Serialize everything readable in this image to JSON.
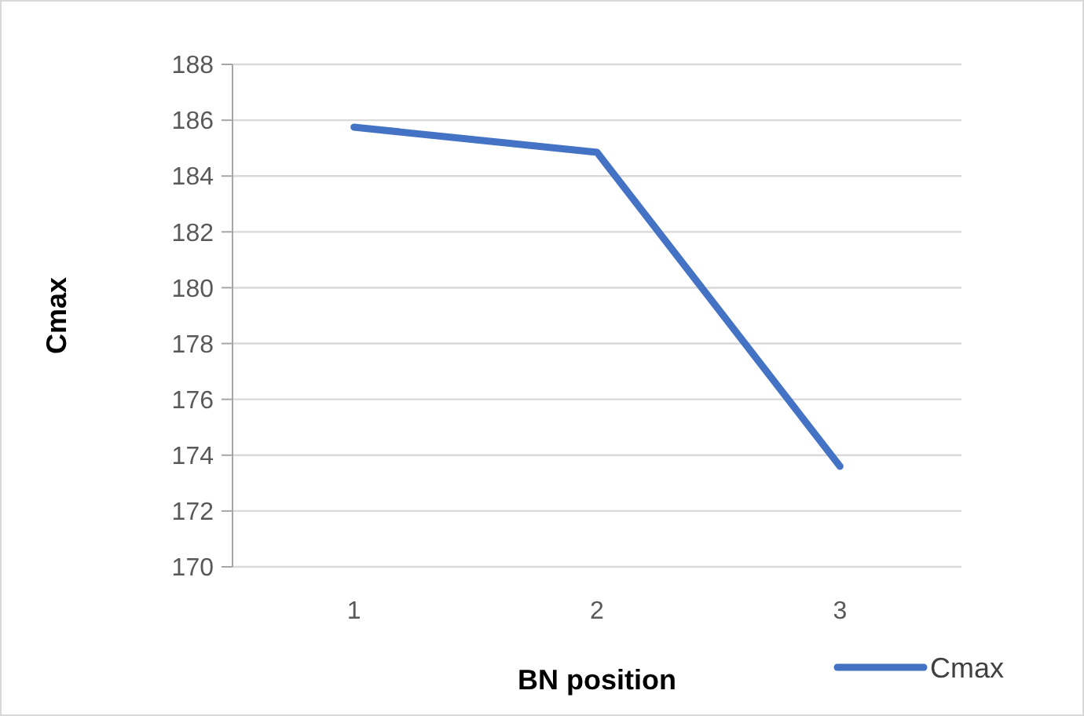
{
  "chart_data": {
    "type": "line",
    "xlabel": "BN position",
    "ylabel": "Cmax",
    "categories": [
      "1",
      "2",
      "3"
    ],
    "series": [
      {
        "name": "Cmax",
        "color": "#4472c4",
        "values": [
          185.75,
          184.85,
          173.6
        ]
      }
    ],
    "ylim": [
      170,
      188
    ],
    "yticks": [
      170,
      172,
      174,
      176,
      178,
      180,
      182,
      184,
      186,
      188
    ],
    "grid": "y",
    "legend": "bottom right",
    "marker": "none",
    "line_style": "solid"
  }
}
